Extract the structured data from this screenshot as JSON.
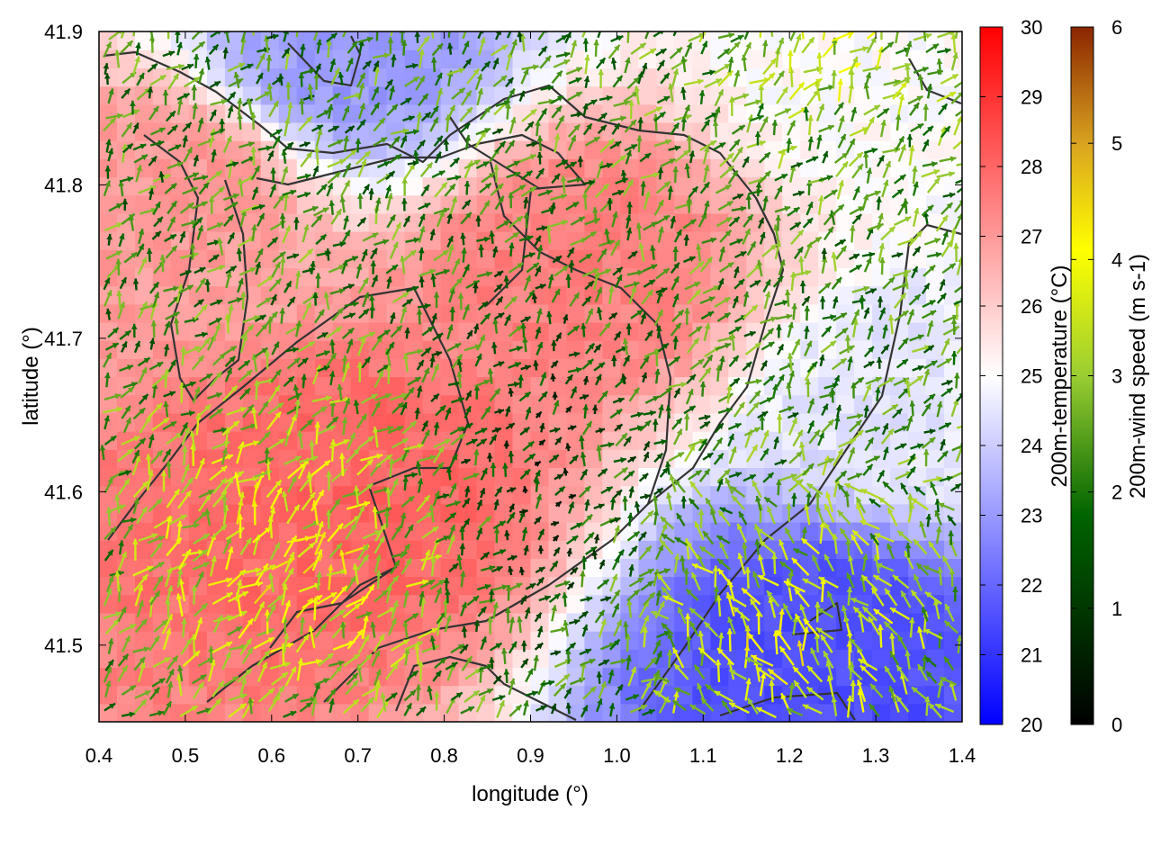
{
  "chart_data": {
    "type": "heatmap",
    "title": "",
    "xlabel": "longitude (°)",
    "ylabel": "latitude (°)",
    "xlim": [
      0.4,
      1.4
    ],
    "ylim": [
      41.45,
      41.9
    ],
    "xticks": [
      "0.4",
      "0.5",
      "0.6",
      "0.7",
      "0.8",
      "0.9",
      "1.0",
      "1.1",
      "1.2",
      "1.3",
      "1.4"
    ],
    "yticks": [
      "41.5",
      "41.6",
      "41.7",
      "41.8",
      "41.9"
    ],
    "grid": false,
    "legend": "none",
    "temperature_colorbar": {
      "label": "200m-temperature (°C)",
      "range": [
        20,
        30
      ],
      "ticks": [
        "20",
        "21",
        "22",
        "23",
        "24",
        "25",
        "26",
        "27",
        "28",
        "29",
        "30"
      ],
      "colors": [
        "#0000ff",
        "#ffffff",
        "#ff0000"
      ]
    },
    "wind_colorbar": {
      "label": "200m-wind speed (m s-1)",
      "range": [
        0,
        6
      ],
      "ticks": [
        "0",
        "1",
        "2",
        "3",
        "4",
        "5",
        "6"
      ],
      "colors": [
        "#000000",
        "#006400",
        "#9acd32",
        "#ffff00",
        "#daa520",
        "#8b2500"
      ]
    },
    "temperature_field": {
      "description_zones": [
        {
          "lon": 0.7,
          "lat": 41.6,
          "temp": 28.0
        },
        {
          "lon": 0.95,
          "lat": 41.75,
          "temp": 27.5
        },
        {
          "lon": 0.5,
          "lat": 41.8,
          "temp": 27.0
        },
        {
          "lon": 1.25,
          "lat": 41.5,
          "temp": 21.5
        },
        {
          "lon": 0.68,
          "lat": 41.88,
          "temp": 23.0
        },
        {
          "lon": 1.35,
          "lat": 41.65,
          "temp": 24.5
        },
        {
          "lon": 1.3,
          "lat": 41.88,
          "temp": 25.0
        }
      ]
    }
  }
}
